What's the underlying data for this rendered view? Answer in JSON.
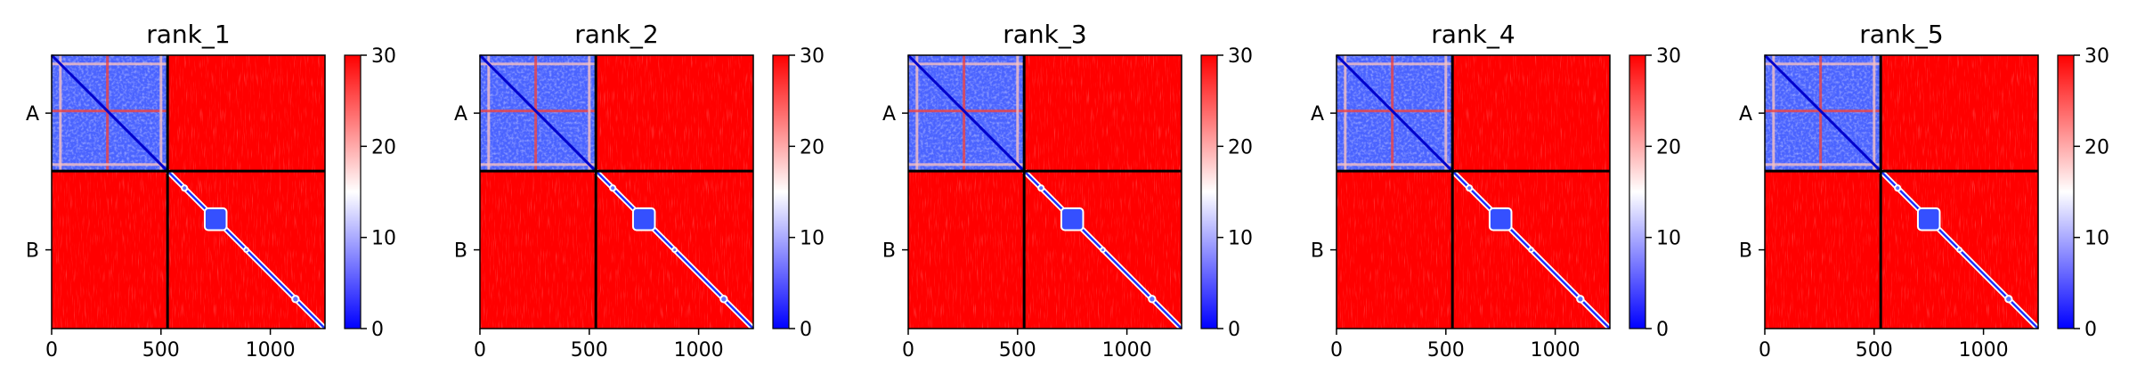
{
  "chart_data": [
    {
      "type": "heatmap",
      "title": "rank_1",
      "chains": [
        "A",
        "B"
      ],
      "chain_boundary": 530,
      "x": {
        "range": [
          0,
          1250
        ],
        "ticks": [
          0,
          500,
          1000
        ],
        "tick_labels": [
          "0",
          "500",
          "1000"
        ]
      },
      "y_tick_labels": [
        "A",
        "B"
      ],
      "colorbar": {
        "range": [
          0,
          30
        ],
        "ticks": [
          0,
          10,
          20,
          30
        ],
        "tick_labels": [
          "0",
          "10",
          "20",
          "30"
        ],
        "colors": [
          "#0000ff",
          "#ffffff",
          "#ff0000"
        ]
      },
      "grid": false
    },
    {
      "type": "heatmap",
      "title": "rank_2",
      "chains": [
        "A",
        "B"
      ],
      "chain_boundary": 530,
      "x": {
        "range": [
          0,
          1250
        ],
        "ticks": [
          0,
          500,
          1000
        ],
        "tick_labels": [
          "0",
          "500",
          "1000"
        ]
      },
      "y_tick_labels": [
        "A",
        "B"
      ],
      "colorbar": {
        "range": [
          0,
          30
        ],
        "ticks": [
          0,
          10,
          20,
          30
        ],
        "tick_labels": [
          "0",
          "10",
          "20",
          "30"
        ],
        "colors": [
          "#0000ff",
          "#ffffff",
          "#ff0000"
        ]
      },
      "grid": false
    },
    {
      "type": "heatmap",
      "title": "rank_3",
      "chains": [
        "A",
        "B"
      ],
      "chain_boundary": 530,
      "x": {
        "range": [
          0,
          1250
        ],
        "ticks": [
          0,
          500,
          1000
        ],
        "tick_labels": [
          "0",
          "500",
          "1000"
        ]
      },
      "y_tick_labels": [
        "A",
        "B"
      ],
      "colorbar": {
        "range": [
          0,
          30
        ],
        "ticks": [
          0,
          10,
          20,
          30
        ],
        "tick_labels": [
          "0",
          "10",
          "20",
          "30"
        ],
        "colors": [
          "#0000ff",
          "#ffffff",
          "#ff0000"
        ]
      },
      "grid": false
    },
    {
      "type": "heatmap",
      "title": "rank_4",
      "chains": [
        "A",
        "B"
      ],
      "chain_boundary": 530,
      "x": {
        "range": [
          0,
          1250
        ],
        "ticks": [
          0,
          500,
          1000
        ],
        "tick_labels": [
          "0",
          "500",
          "1000"
        ]
      },
      "y_tick_labels": [
        "A",
        "B"
      ],
      "colorbar": {
        "range": [
          0,
          30
        ],
        "ticks": [
          0,
          10,
          20,
          30
        ],
        "tick_labels": [
          "0",
          "10",
          "20",
          "30"
        ],
        "colors": [
          "#0000ff",
          "#ffffff",
          "#ff0000"
        ]
      },
      "grid": false
    },
    {
      "type": "heatmap",
      "title": "rank_5",
      "chains": [
        "A",
        "B"
      ],
      "chain_boundary": 530,
      "x": {
        "range": [
          0,
          1250
        ],
        "ticks": [
          0,
          500,
          1000
        ],
        "tick_labels": [
          "0",
          "500",
          "1000"
        ]
      },
      "y_tick_labels": [
        "A",
        "B"
      ],
      "colorbar": {
        "range": [
          0,
          30
        ],
        "ticks": [
          0,
          10,
          20,
          30
        ],
        "tick_labels": [
          "0",
          "10",
          "20",
          "30"
        ],
        "colors": [
          "#0000ff",
          "#ffffff",
          "#ff0000"
        ]
      },
      "grid": false
    }
  ]
}
